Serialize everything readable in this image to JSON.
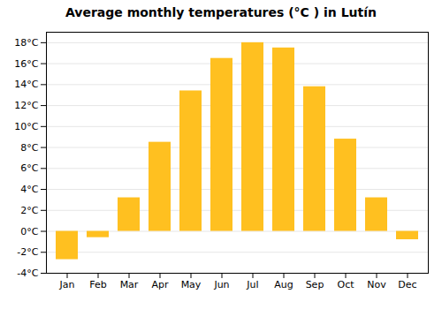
{
  "chart_data": {
    "type": "bar",
    "title": "Average monthly temperatures (°C ) in Lutín",
    "categories": [
      "Jan",
      "Feb",
      "Mar",
      "Apr",
      "May",
      "Jun",
      "Jul",
      "Aug",
      "Sep",
      "Oct",
      "Nov",
      "Dec"
    ],
    "values": [
      -2.7,
      -0.6,
      3.2,
      8.5,
      13.4,
      16.5,
      18.0,
      17.5,
      13.8,
      8.8,
      3.2,
      -0.8
    ],
    "color": "#FFC020",
    "ylim": [
      -4,
      19
    ],
    "yticks": [
      {
        "value": -4,
        "label": "-4°C"
      },
      {
        "value": -2,
        "label": "-2°C"
      },
      {
        "value": 0,
        "label": "0°C"
      },
      {
        "value": 2,
        "label": "2°C"
      },
      {
        "value": 4,
        "label": "4°C"
      },
      {
        "value": 6,
        "label": "6°C"
      },
      {
        "value": 8,
        "label": "8°C"
      },
      {
        "value": 10,
        "label": "10°C"
      },
      {
        "value": 12,
        "label": "12°C"
      },
      {
        "value": 14,
        "label": "14°C"
      },
      {
        "value": 16,
        "label": "16°C"
      },
      {
        "value": 18,
        "label": "18°C"
      }
    ],
    "grid": true
  }
}
